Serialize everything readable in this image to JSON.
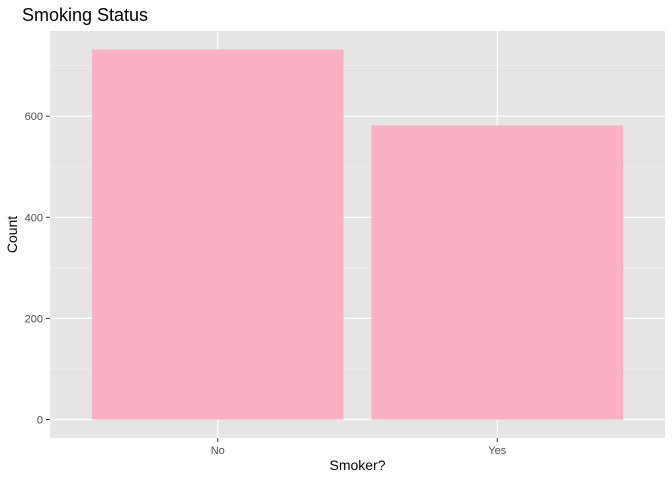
{
  "chart_data": {
    "type": "bar",
    "title": "Smoking Status",
    "xlabel": "Smoker?",
    "ylabel": "Count",
    "categories": [
      "No",
      "Yes"
    ],
    "values": [
      732,
      582
    ],
    "ylim": [
      -36.6,
      768.6
    ],
    "yticks": [
      0,
      200,
      400,
      600
    ],
    "ytick_labels": [
      "0",
      "200",
      "400",
      "600"
    ],
    "grid": true,
    "legend": "none",
    "colors": {
      "bar": "#FBB0C3",
      "panel_background": "#E5E5E5",
      "grid_major": "#FFFFFF",
      "grid_minor": "#F2F2F2",
      "tick": "#333333"
    }
  }
}
